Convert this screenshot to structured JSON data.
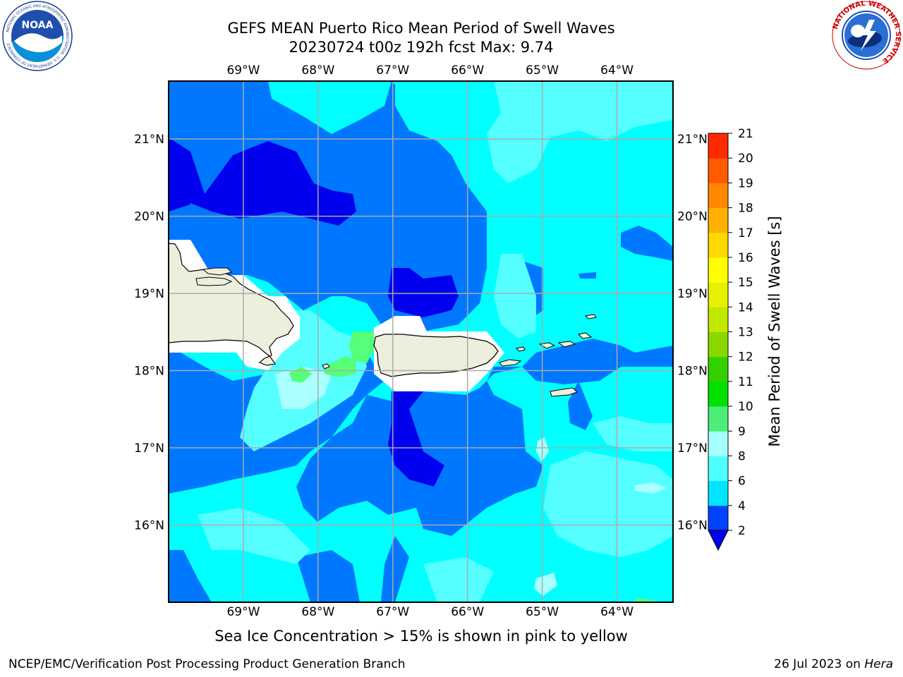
{
  "header": {
    "title_line1": "GEFS MEAN Puerto Rico Mean Period of Swell Waves",
    "title_line2": "20230724 t00z 192h fcst   Max: 9.74"
  },
  "logos": {
    "left": {
      "name": "noaa-logo",
      "text": "NOAA",
      "ring_text": "NATIONAL OCEANIC AND ATMOSPHERIC ADMINISTRATION · U.S. DEPARTMENT OF COMMERCE"
    },
    "right": {
      "name": "nws-logo",
      "ring_text": "NATIONAL WEATHER SERVICE"
    }
  },
  "map": {
    "region": "Puerto Rico",
    "lon_range": [
      -70.0,
      -63.25
    ],
    "lat_range": [
      15.0,
      21.75
    ],
    "lon_ticks": [
      "69°W",
      "68°W",
      "67°W",
      "66°W",
      "65°W",
      "64°W"
    ],
    "lat_ticks": [
      "21°N",
      "20°N",
      "19°N",
      "18°N",
      "17°N",
      "16°N"
    ],
    "grid": true
  },
  "colorbar": {
    "label": "Mean Period of Swell Waves [s]",
    "ticks": [
      "21",
      "20",
      "19",
      "18",
      "17",
      "16",
      "15",
      "14",
      "13",
      "12",
      "11",
      "10",
      "9",
      "8",
      "6",
      "4",
      "2"
    ],
    "levels": [
      2,
      4,
      6,
      8,
      9,
      10,
      11,
      12,
      13,
      14,
      15,
      16,
      17,
      18,
      19,
      20,
      21
    ],
    "colors": [
      "#0044ff",
      "#00e5ff",
      "#4dffff",
      "#a6ffff",
      "#4dee77",
      "#00e000",
      "#33d000",
      "#88d800",
      "#c0e800",
      "#e6f000",
      "#ffff00",
      "#ffd800",
      "#ffb000",
      "#ff8800",
      "#ff5a00",
      "#ff2a00",
      "#ff0000"
    ],
    "underflow_color": "#0000ee",
    "colors_in_use": {
      "deep_blue": "#0000ee",
      "blue": "#0077ff",
      "cyan": "#00ffff",
      "light_cyan": "#55ffff",
      "pale_cyan": "#aaffff",
      "green": "#55ff77",
      "land": "#eeeedd"
    }
  },
  "footer": {
    "note": "Sea Ice Concentration > 15% is shown in pink to yellow",
    "left": "NCEP/EMC/Verification Post Processing Product Generation Branch",
    "right_prefix": "26 Jul 2023 on ",
    "right_machine": "Hera"
  }
}
